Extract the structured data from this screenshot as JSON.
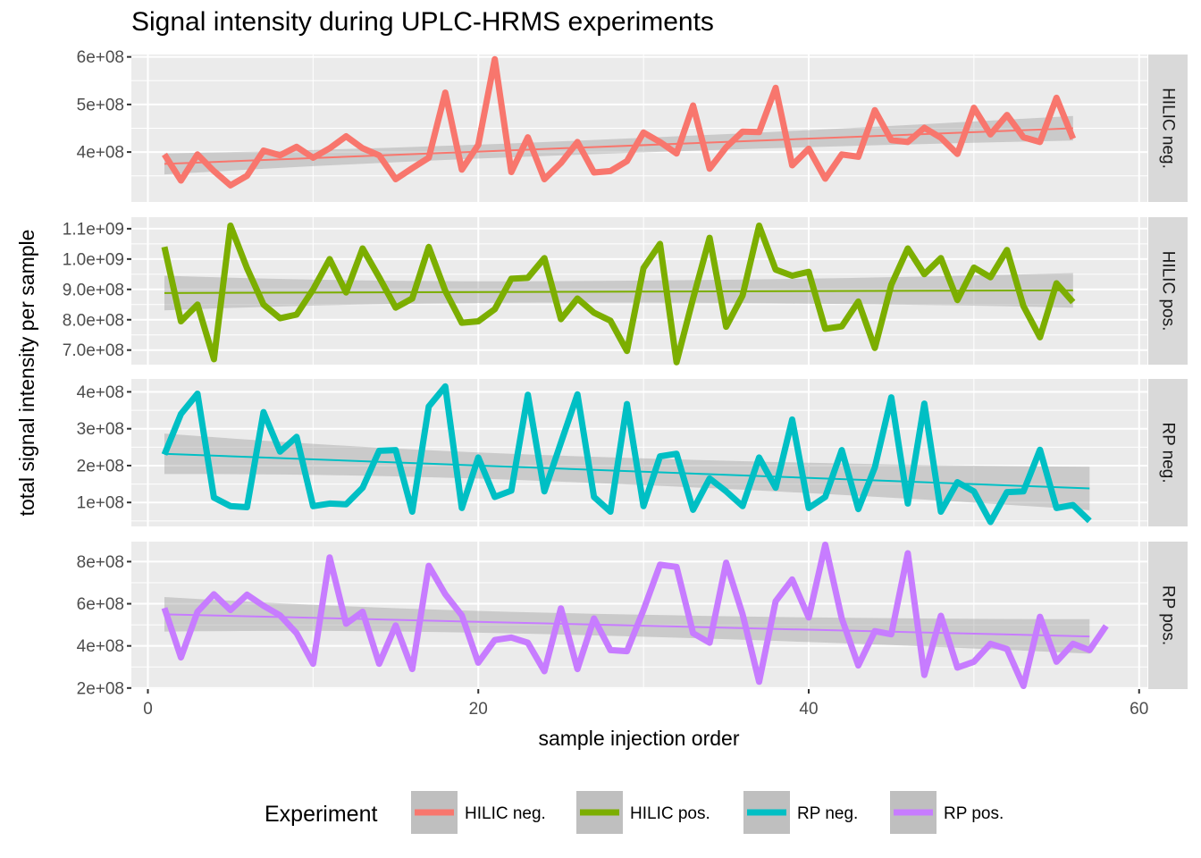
{
  "chart_data": {
    "type": "line",
    "title": "Signal intensity during UPLC-HRMS experiments",
    "xlabel": "sample injection order",
    "ylabel": "total signal intensity per sample",
    "xlim": [
      -1,
      60.5
    ],
    "x_ticks": [
      0,
      20,
      40,
      60
    ],
    "x_tick_labels": [
      "0",
      "20",
      "40",
      "60"
    ],
    "grid": true,
    "legend": {
      "title": "Experiment",
      "position": "bottom",
      "entries": [
        "HILIC neg.",
        "HILIC pos.",
        "RP neg.",
        "RP pos."
      ]
    },
    "series": [
      {
        "name": "HILIC neg.",
        "color": "#F8766D",
        "ylim": [
          295000000,
          605000000
        ],
        "y_ticks": [
          400000000,
          500000000,
          600000000
        ],
        "y_tick_labels": [
          "4e+08",
          "5e+08",
          "6e+08"
        ],
        "x": [
          1,
          2,
          3,
          4,
          5,
          6,
          7,
          8,
          9,
          10,
          11,
          12,
          13,
          14,
          15,
          16,
          17,
          18,
          19,
          20,
          21,
          22,
          23,
          24,
          25,
          26,
          27,
          28,
          29,
          30,
          31,
          32,
          33,
          34,
          35,
          36,
          37,
          38,
          39,
          40,
          41,
          42,
          43,
          44,
          45,
          46,
          47,
          48,
          49,
          50,
          51,
          52,
          53,
          54,
          55,
          56
        ],
        "y": [
          395000000,
          340000000,
          395000000,
          360000000,
          330000000,
          350000000,
          403000000,
          393000000,
          411000000,
          388000000,
          408000000,
          433000000,
          408000000,
          393000000,
          343000000,
          366000000,
          388000000,
          525000000,
          363000000,
          415000000,
          595000000,
          358000000,
          431000000,
          343000000,
          377000000,
          421000000,
          357000000,
          360000000,
          381000000,
          441000000,
          421000000,
          397000000,
          498000000,
          365000000,
          410000000,
          443000000,
          442000000,
          535000000,
          372000000,
          407000000,
          344000000,
          395000000,
          390000000,
          488000000,
          425000000,
          421000000,
          451000000,
          430000000,
          396000000,
          493000000,
          437000000,
          478000000,
          431000000,
          421000000,
          514000000,
          428000000
        ],
        "trend": {
          "x": [
            1,
            56
          ],
          "y": [
            375000000,
            450000000
          ],
          "band_halfwidth_start": 22000000,
          "band_halfwidth_end": 26000000
        }
      },
      {
        "name": "HILIC pos.",
        "color": "#7CAE00",
        "ylim": [
          652000000,
          1138000000
        ],
        "y_ticks": [
          700000000,
          800000000,
          900000000,
          1000000000,
          1100000000
        ],
        "y_tick_labels": [
          "7.0e+08",
          "8.0e+08",
          "9.0e+08",
          "1.0e+09",
          "1.1e+09"
        ],
        "x": [
          1,
          2,
          3,
          4,
          5,
          6,
          7,
          8,
          9,
          10,
          11,
          12,
          13,
          14,
          15,
          16,
          17,
          18,
          19,
          20,
          21,
          22,
          23,
          24,
          25,
          26,
          27,
          28,
          29,
          30,
          31,
          32,
          33,
          34,
          35,
          36,
          37,
          38,
          39,
          40,
          41,
          42,
          43,
          44,
          45,
          46,
          47,
          48,
          49,
          50,
          51,
          52,
          53,
          54,
          55,
          56
        ],
        "y": [
          1040000000,
          795000000,
          850000000,
          670000000,
          1110000000,
          970000000,
          850000000,
          805000000,
          817000000,
          900000000,
          1000000000,
          890000000,
          1035000000,
          940000000,
          840000000,
          870000000,
          1040000000,
          895000000,
          790000000,
          795000000,
          835000000,
          935000000,
          938000000,
          1003000000,
          802000000,
          870000000,
          823000000,
          797000000,
          697000000,
          970000000,
          1050000000,
          660000000,
          870000000,
          1070000000,
          777000000,
          880000000,
          1110000000,
          965000000,
          945000000,
          958000000,
          770000000,
          778000000,
          860000000,
          707000000,
          915000000,
          1035000000,
          950000000,
          1003000000,
          865000000,
          972000000,
          940000000,
          1030000000,
          845000000,
          742000000,
          920000000,
          858000000
        ],
        "trend": {
          "x": [
            1,
            56
          ],
          "y": [
            888000000,
            897000000
          ],
          "band_halfwidth_start": 57000000,
          "band_halfwidth_end": 57000000
        }
      },
      {
        "name": "RP neg.",
        "color": "#00BFC4",
        "ylim": [
          35000000,
          435000000
        ],
        "y_ticks": [
          100000000,
          200000000,
          300000000,
          400000000
        ],
        "y_tick_labels": [
          "1e+08",
          "2e+08",
          "3e+08",
          "4e+08"
        ],
        "x": [
          1,
          2,
          3,
          4,
          5,
          6,
          7,
          8,
          9,
          10,
          11,
          12,
          13,
          14,
          15,
          16,
          17,
          18,
          19,
          20,
          21,
          22,
          23,
          24,
          25,
          26,
          27,
          28,
          29,
          30,
          31,
          32,
          33,
          34,
          35,
          36,
          37,
          38,
          39,
          40,
          41,
          42,
          43,
          44,
          45,
          46,
          47,
          48,
          49,
          50,
          51,
          52,
          53,
          54,
          55,
          56,
          57
        ],
        "y": [
          230000000,
          340000000,
          395000000,
          113000000,
          90000000,
          87000000,
          345000000,
          238000000,
          278000000,
          90000000,
          97000000,
          95000000,
          140000000,
          240000000,
          242000000,
          75000000,
          360000000,
          415000000,
          85000000,
          222000000,
          115000000,
          132000000,
          392000000,
          130000000,
          262000000,
          393000000,
          115000000,
          75000000,
          367000000,
          90000000,
          225000000,
          232000000,
          80000000,
          165000000,
          130000000,
          90000000,
          222000000,
          140000000,
          325000000,
          85000000,
          115000000,
          242000000,
          82000000,
          195000000,
          385000000,
          97000000,
          368000000,
          75000000,
          155000000,
          130000000,
          47000000,
          128000000,
          130000000,
          243000000,
          85000000,
          93000000,
          50000000
        ],
        "trend": {
          "x": [
            1,
            57
          ],
          "y": [
            232000000,
            138000000
          ],
          "band_halfwidth_start": 55000000,
          "band_halfwidth_end": 59000000
        }
      },
      {
        "name": "RP pos.",
        "color": "#C77CFF",
        "ylim": [
          195000000,
          895000000
        ],
        "y_ticks": [
          200000000,
          400000000,
          600000000,
          800000000
        ],
        "y_tick_labels": [
          "2e+08",
          "4e+08",
          "6e+08",
          "8e+08"
        ],
        "x": [
          1,
          2,
          3,
          4,
          5,
          6,
          7,
          8,
          9,
          10,
          11,
          12,
          13,
          14,
          15,
          16,
          17,
          18,
          19,
          20,
          21,
          22,
          23,
          24,
          25,
          26,
          27,
          28,
          29,
          30,
          31,
          32,
          33,
          34,
          35,
          36,
          37,
          38,
          39,
          40,
          41,
          42,
          43,
          44,
          45,
          46,
          47,
          48,
          49,
          50,
          51,
          52,
          53,
          54,
          55,
          56,
          57,
          58
        ],
        "y": [
          580000000,
          345000000,
          562000000,
          645000000,
          570000000,
          643000000,
          590000000,
          545000000,
          460000000,
          315000000,
          820000000,
          505000000,
          562000000,
          315000000,
          497000000,
          290000000,
          780000000,
          645000000,
          545000000,
          320000000,
          428000000,
          440000000,
          415000000,
          280000000,
          578000000,
          290000000,
          530000000,
          380000000,
          375000000,
          570000000,
          785000000,
          775000000,
          460000000,
          415000000,
          795000000,
          550000000,
          230000000,
          612000000,
          715000000,
          535000000,
          880000000,
          530000000,
          307000000,
          470000000,
          455000000,
          840000000,
          262000000,
          543000000,
          297000000,
          325000000,
          410000000,
          385000000,
          210000000,
          538000000,
          325000000,
          410000000,
          380000000,
          495000000
        ],
        "trend": {
          "x": [
            1,
            57
          ],
          "y": [
            550000000,
            445000000
          ],
          "band_halfwidth_start": 82000000,
          "band_halfwidth_end": 82000000
        }
      }
    ]
  }
}
